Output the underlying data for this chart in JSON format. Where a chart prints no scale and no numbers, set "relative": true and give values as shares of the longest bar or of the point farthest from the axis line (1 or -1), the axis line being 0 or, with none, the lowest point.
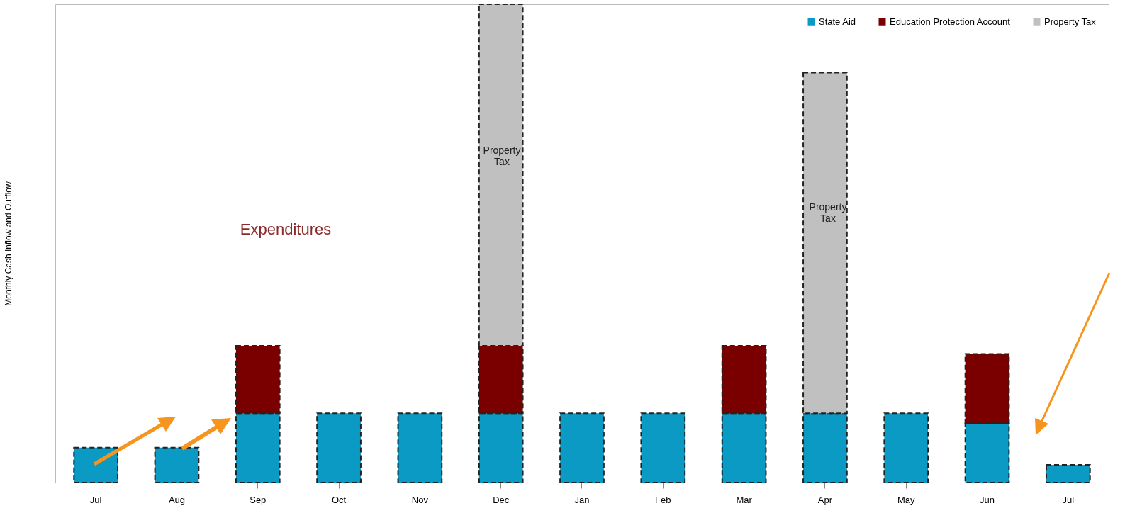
{
  "chart_data": {
    "type": "bar",
    "stacked": true,
    "relative": true,
    "ylabel": "Monthly Cash Inflow and Outflow",
    "categories": [
      "Jul",
      "Aug",
      "Sep",
      "Oct",
      "Nov",
      "Dec",
      "Jan",
      "Feb",
      "Mar",
      "Apr",
      "May",
      "Jun",
      "Jul"
    ],
    "series": [
      {
        "name": "State Aid",
        "color": "#0b9ac4",
        "values": [
          0.073,
          0.073,
          0.145,
          0.145,
          0.145,
          0.145,
          0.145,
          0.145,
          0.145,
          0.145,
          0.145,
          0.124,
          0.037
        ]
      },
      {
        "name": "Education Protection Account",
        "color": "#7a0000",
        "values": [
          null,
          null,
          0.141,
          null,
          null,
          0.141,
          null,
          null,
          0.141,
          null,
          null,
          0.145,
          null
        ]
      },
      {
        "name": "Property Tax",
        "color": "#c0c0c0",
        "values": [
          null,
          null,
          null,
          null,
          null,
          0.714,
          null,
          null,
          null,
          0.712,
          null,
          null,
          null
        ]
      }
    ],
    "annotations": [
      "Expenditures",
      "Property Tax",
      "Property Tax"
    ],
    "legend": "top right",
    "grid": false
  }
}
